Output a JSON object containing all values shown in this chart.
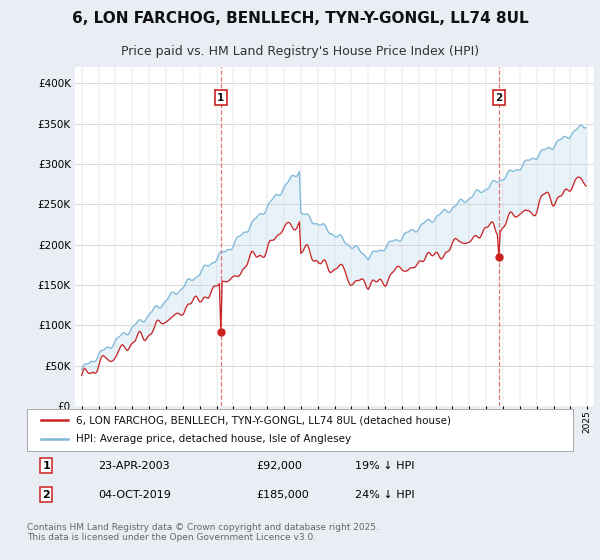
{
  "title": "6, LON FARCHOG, BENLLECH, TYN-Y-GONGL, LL74 8UL",
  "subtitle": "Price paid vs. HM Land Registry's House Price Index (HPI)",
  "ylim": [
    0,
    420000
  ],
  "yticks": [
    0,
    50000,
    100000,
    150000,
    200000,
    250000,
    300000,
    350000,
    400000
  ],
  "hpi_color": "#7db8d8",
  "hpi_fill": "#daeaf5",
  "price_color": "#cc2222",
  "vline_color": "#e06060",
  "marker_edge_color": "#cc2222",
  "legend1": "6, LON FARCHOG, BENLLECH, TYN-Y-GONGL, LL74 8UL (detached house)",
  "legend2": "HPI: Average price, detached house, Isle of Anglesey",
  "footnote": "Contains HM Land Registry data © Crown copyright and database right 2025.\nThis data is licensed under the Open Government Licence v3.0.",
  "background_color": "#e8eef4",
  "plot_bg": "#ffffff",
  "grid_color": "#cccccc",
  "title_fontsize": 11,
  "subtitle_fontsize": 9,
  "start_year": 1995,
  "end_year": 2025,
  "marker1_year": 2003,
  "marker1_month": 3,
  "marker1_price": 92000,
  "marker2_year": 2019,
  "marker2_month": 9,
  "marker2_price": 185000
}
